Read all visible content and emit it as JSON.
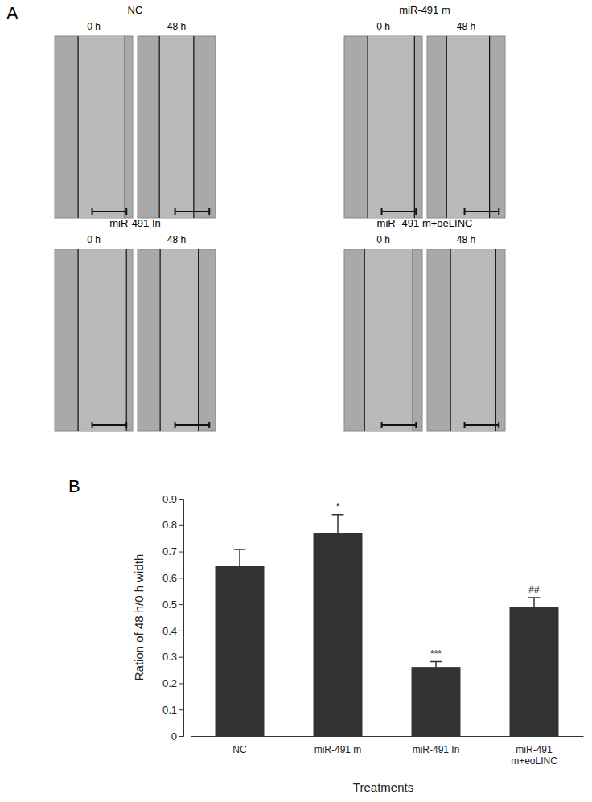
{
  "figure": {
    "panel_labels": [
      "A",
      "B"
    ]
  },
  "panel_a": {
    "panels": [
      {
        "title": "NC",
        "times": [
          "0 h",
          "48 h"
        ]
      },
      {
        "title": "miR-491 m",
        "times": [
          "0 h",
          "48 h"
        ]
      },
      {
        "title": "miR-491 In",
        "times": [
          "0 h",
          "48 h"
        ]
      },
      {
        "title": "miR -491 m+oeLINC",
        "times": [
          "0 h",
          "48 h"
        ]
      }
    ]
  },
  "chart_data": {
    "type": "bar",
    "x_label": "Treatments",
    "y_label": "Ration of 48 h/0 h width",
    "categories": [
      "NC",
      "miR-491 m",
      "miR-491 In",
      "miR-491 m+eoLINC"
    ],
    "values": [
      0.645,
      0.77,
      0.262,
      0.49
    ],
    "errors": [
      0.063,
      0.07,
      0.02,
      0.035
    ],
    "significance": [
      null,
      "*",
      "***",
      "##"
    ],
    "color": "#333333",
    "ylim": [
      0,
      0.9
    ],
    "yticks": [
      0,
      0.1,
      0.2,
      0.3,
      0.4,
      0.5,
      0.6,
      0.7,
      0.8,
      0.9
    ],
    "grid": false
  }
}
